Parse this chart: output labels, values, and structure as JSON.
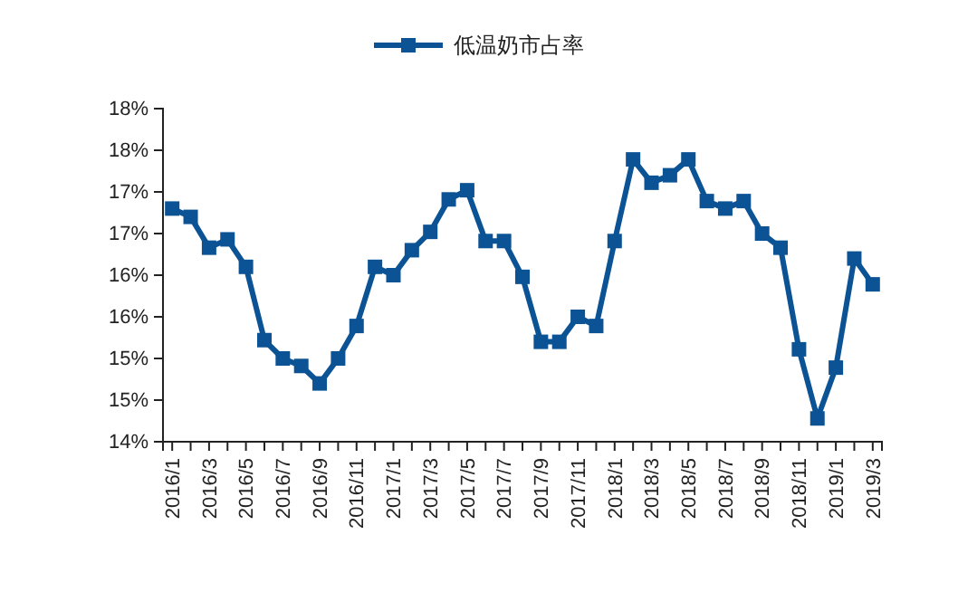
{
  "chart_data": {
    "type": "line",
    "legend": "top",
    "marker": "square",
    "grid": false,
    "categories": [
      "2016/1",
      null,
      "2016/3",
      null,
      "2016/5",
      null,
      "2016/7",
      null,
      "2016/9",
      null,
      "2016/11",
      null,
      "2017/1",
      null,
      "2017/3",
      null,
      "2017/5",
      null,
      "2017/7",
      null,
      "2017/9",
      null,
      "2017/11",
      null,
      "2018/1",
      null,
      "2018/3",
      null,
      "2018/5",
      null,
      "2018/7",
      null,
      "2018/9",
      null,
      "2018/11",
      null,
      "2019/1",
      null,
      "2019/3"
    ],
    "series": [
      {
        "name": "低温奶市占率",
        "color": "#0b5394",
        "values": [
          16.8,
          16.7,
          16.33,
          16.43,
          16.1,
          15.22,
          15.0,
          14.91,
          14.7,
          15.0,
          15.39,
          16.1,
          16.0,
          16.3,
          16.52,
          16.91,
          17.02,
          16.41,
          16.41,
          15.98,
          15.2,
          15.2,
          15.5,
          15.39,
          16.41,
          17.39,
          17.11,
          17.2,
          17.39,
          16.89,
          16.8,
          16.89,
          16.5,
          16.33,
          15.11,
          14.28,
          14.89,
          16.2,
          15.89
        ]
      }
    ],
    "ylim": [
      14,
      18
    ],
    "yticks": [
      {
        "value": 14,
        "label": "14%"
      },
      {
        "value": 14.5,
        "label": "15%"
      },
      {
        "value": 15,
        "label": "15%"
      },
      {
        "value": 15.5,
        "label": "16%"
      },
      {
        "value": 16,
        "label": "16%"
      },
      {
        "value": 16.5,
        "label": "17%"
      },
      {
        "value": 17,
        "label": "17%"
      },
      {
        "value": 17.5,
        "label": "18%"
      },
      {
        "value": 18,
        "label": "18%"
      }
    ]
  }
}
